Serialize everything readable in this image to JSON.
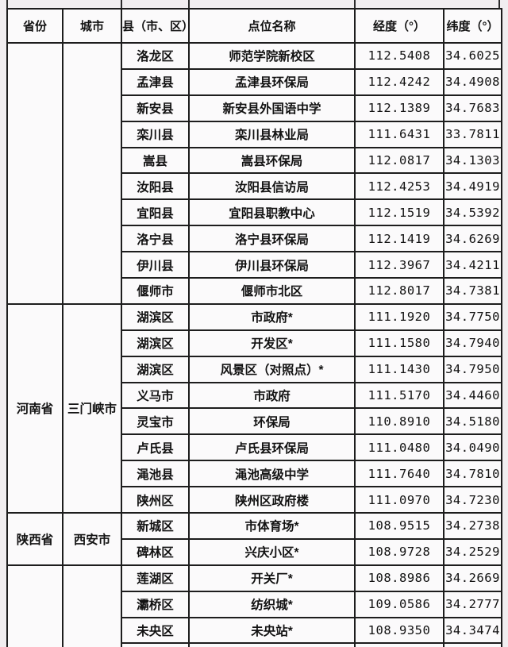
{
  "table": {
    "headers": [
      "省份",
      "城市",
      "县（市、区）",
      "点位名称",
      "经度（°）",
      "纬度（°）"
    ],
    "sections": [
      {
        "province": "",
        "city": "",
        "continues_below": false,
        "rows": [
          [
            "洛龙区",
            "师范学院新校区",
            "112.5408",
            "34.6025"
          ],
          [
            "孟津县",
            "孟津县环保局",
            "112.4242",
            "34.4908"
          ],
          [
            "新安县",
            "新安县外国语中学",
            "112.1389",
            "34.7683"
          ],
          [
            "栾川县",
            "栾川县林业局",
            "111.6431",
            "33.7811"
          ],
          [
            "嵩县",
            "嵩县环保局",
            "112.0817",
            "34.1303"
          ],
          [
            "汝阳县",
            "汝阳县信访局",
            "112.4253",
            "34.4919"
          ],
          [
            "宜阳县",
            "宜阳县职教中心",
            "112.1519",
            "34.5392"
          ],
          [
            "洛宁县",
            "洛宁县环保局",
            "112.1419",
            "34.6269"
          ],
          [
            "伊川县",
            "伊川县环保局",
            "112.3967",
            "34.4211"
          ],
          [
            "偃师市",
            "偃师市北区",
            "112.8017",
            "34.7381"
          ]
        ]
      },
      {
        "province": "河南省",
        "city": "三门峡市",
        "continues_below": false,
        "rows": [
          [
            "湖滨区",
            "市政府*",
            "111.1920",
            "34.7750"
          ],
          [
            "湖滨区",
            "开发区*",
            "111.1580",
            "34.7940"
          ],
          [
            "湖滨区",
            "风景区（对照点）*",
            "111.1430",
            "34.7950"
          ],
          [
            "义马市",
            "市政府",
            "111.5170",
            "34.4460"
          ],
          [
            "灵宝市",
            "环保局",
            "110.8910",
            "34.5180"
          ],
          [
            "卢氏县",
            "卢氏县环保局",
            "111.0480",
            "34.0490"
          ],
          [
            "渑池县",
            "渑池高级中学",
            "111.7640",
            "34.7810"
          ],
          [
            "陕州区",
            "陕州区政府楼",
            "111.0970",
            "34.7230"
          ]
        ]
      },
      {
        "province": "陕西省",
        "city": "西安市",
        "continues_below": false,
        "rows": [
          [
            "新城区",
            "市体育场*",
            "108.9515",
            "34.2738"
          ],
          [
            "碑林区",
            "兴庆小区*",
            "108.9728",
            "34.2529"
          ]
        ]
      },
      {
        "province": "",
        "city": "",
        "continues_below": true,
        "rows": [
          [
            "莲湖区",
            "开关厂*",
            "108.8986",
            "34.2669"
          ],
          [
            "灞桥区",
            "纺织城*",
            "109.0586",
            "34.2777"
          ],
          [
            "未央区",
            "未央站*",
            "108.9350",
            "34.3474"
          ]
        ]
      }
    ]
  },
  "colors": {
    "page_background": "#f1eef0",
    "cell_background": "#fbfafb",
    "border": "#1d1d1d",
    "text": "#121212"
  }
}
